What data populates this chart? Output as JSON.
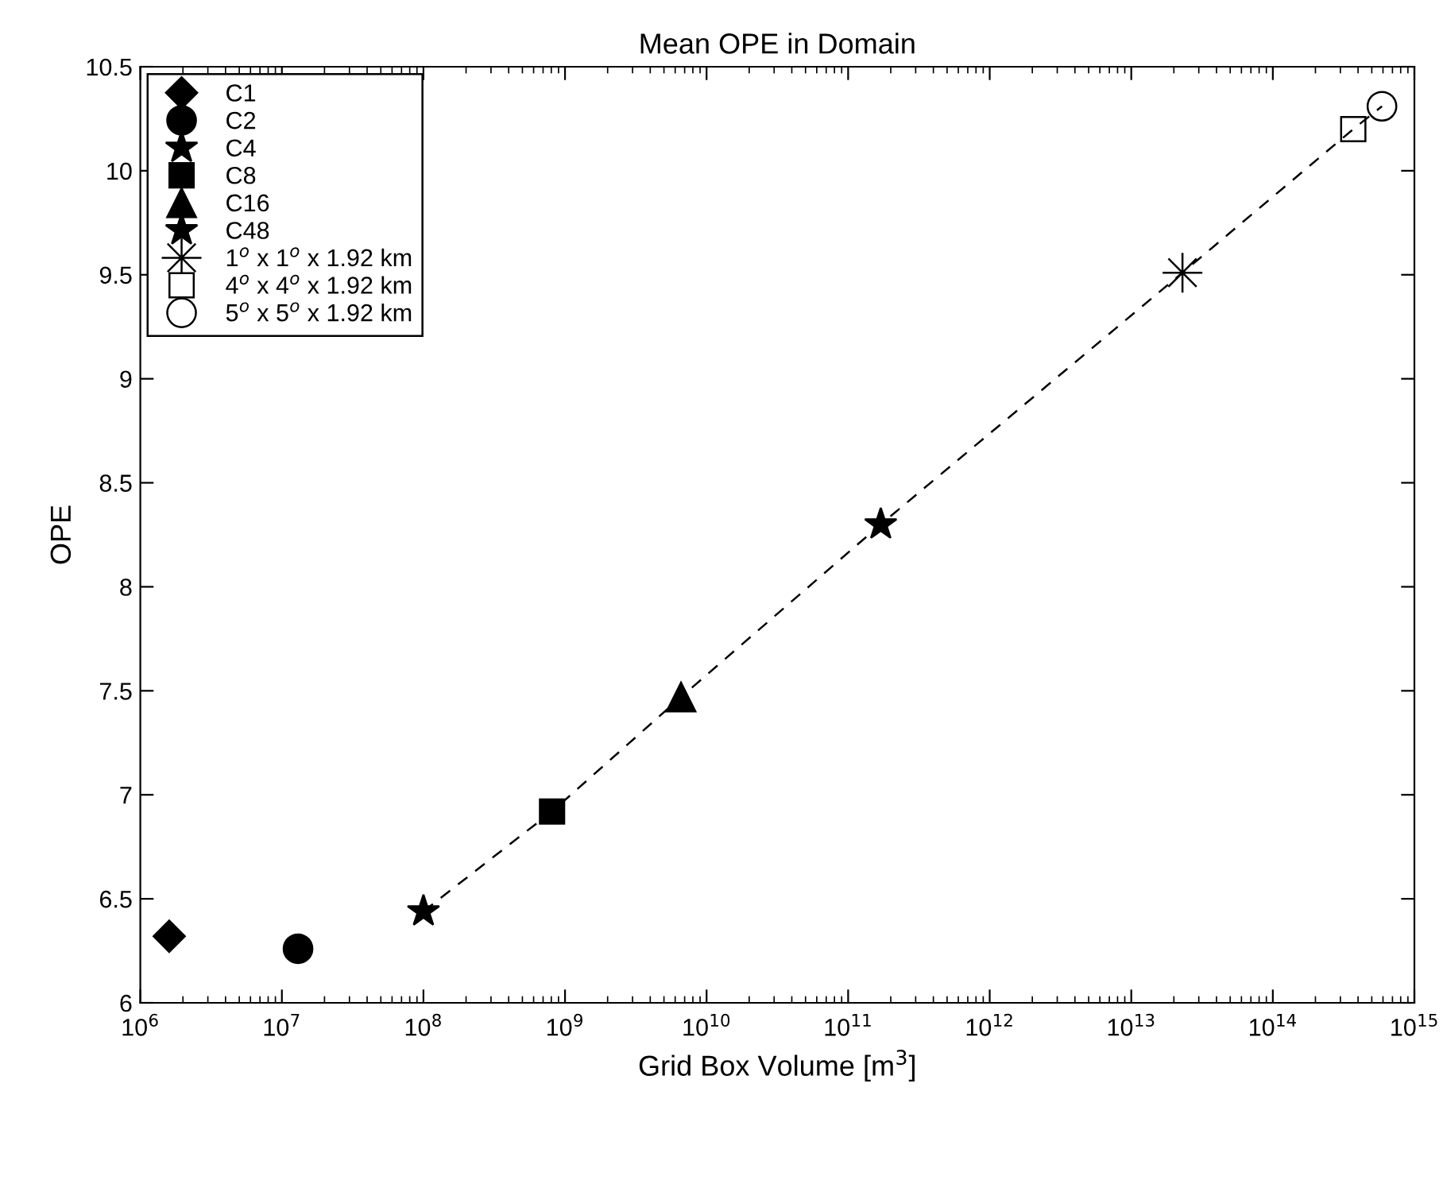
{
  "chart_data": {
    "type": "scatter",
    "title": "Mean OPE in Domain",
    "xlabel": "Grid Box Volume [m$^{3}$]",
    "ylabel": "OPE",
    "log": "x",
    "xlim": [
      1000000.0,
      1000000000000000.0
    ],
    "xticks": [
      {
        "value": 1000000.0,
        "label": "10$^{6}$"
      },
      {
        "value": 10000000.0,
        "label": "10$^{7}$"
      },
      {
        "value": 100000000.0,
        "label": "10$^{8}$"
      },
      {
        "value": 1000000000.0,
        "label": "10$^{9}$"
      },
      {
        "value": 10000000000.0,
        "label": "10$^{10}$"
      },
      {
        "value": 100000000000.0,
        "label": "10$^{11}$"
      },
      {
        "value": 1000000000000.0,
        "label": "10$^{12}$"
      },
      {
        "value": 10000000000000.0,
        "label": "10$^{13}$"
      },
      {
        "value": 100000000000000.0,
        "label": "10$^{14}$"
      },
      {
        "value": 1000000000000000.0,
        "label": "10$^{15}$"
      }
    ],
    "ylim": [
      6,
      10.5
    ],
    "yticks": [
      6,
      6.5,
      7,
      7.5,
      8,
      8.5,
      9,
      9.5,
      10,
      10.5
    ],
    "grid": false,
    "legend": "top left",
    "series": [
      {
        "name": "C1",
        "color": "#000000",
        "marker": "diamond",
        "x": [
          1600000.0
        ],
        "values": [
          6.32
        ]
      },
      {
        "name": "C2",
        "color": "#000000",
        "marker": "circle",
        "x": [
          13000000.0
        ],
        "values": [
          6.26
        ]
      },
      {
        "name": "C4",
        "color": "#000000",
        "marker": "star",
        "x": [
          100000000.0
        ],
        "values": [
          6.44
        ]
      },
      {
        "name": "C8",
        "color": "#000000",
        "marker": "square",
        "x": [
          810000000.0
        ],
        "values": [
          6.92
        ]
      },
      {
        "name": "C16",
        "color": "#000000",
        "marker": "triangle",
        "x": [
          6600000000.0
        ],
        "values": [
          7.47
        ]
      },
      {
        "name": "C48",
        "color": "#000000",
        "marker": "star",
        "x": [
          170000000000.0
        ],
        "values": [
          8.3
        ]
      },
      {
        "name": "1$^{o}$ x 1$^{o}$ x 1.92 km",
        "color": "#000000",
        "marker": "cross",
        "x": [
          23000000000000.0
        ],
        "values": [
          9.51
        ]
      },
      {
        "name": "4$^{o}$ x 4$^{o}$ x 1.92 km",
        "color": "#ffffff",
        "marker": "square",
        "x": [
          370000000000000.0
        ],
        "values": [
          10.2
        ]
      },
      {
        "name": "5$^{o}$ x 5$^{o}$ x 1.92 km",
        "color": "#ffffff",
        "marker": "circle",
        "x": [
          590000000000000.0
        ],
        "values": [
          10.31
        ]
      },
      {
        "type": "line",
        "color": "#000000",
        "line_style": "dashed",
        "marker": "none",
        "x": [
          100000000.0,
          810000000.0,
          6600000000.0,
          170000000000.0,
          23000000000000.0,
          370000000000000.0,
          590000000000000.0
        ],
        "values": [
          6.44,
          6.92,
          7.47,
          8.3,
          9.51,
          10.2,
          10.31
        ]
      }
    ]
  }
}
